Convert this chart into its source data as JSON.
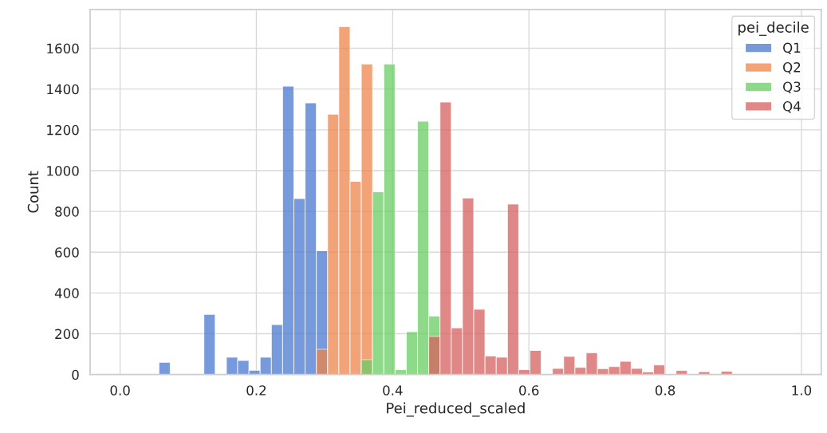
{
  "chart_data": {
    "type": "histogram",
    "xlabel": "Pei_reduced_scaled",
    "ylabel": "Count",
    "legend_title": "pei_decile",
    "bins": [
      0.057,
      0.0735,
      0.09,
      0.1065,
      0.123,
      0.1395,
      0.156,
      0.1725,
      0.189,
      0.2055,
      0.222,
      0.2385,
      0.255,
      0.2715,
      0.288,
      0.3045,
      0.321,
      0.3375,
      0.354,
      0.3705,
      0.387,
      0.4035,
      0.42,
      0.4365,
      0.453,
      0.4695,
      0.486,
      0.5025,
      0.519,
      0.5355,
      0.552,
      0.5685,
      0.585,
      0.6015,
      0.618,
      0.6345,
      0.651,
      0.6675,
      0.684,
      0.7005,
      0.717,
      0.7335,
      0.75,
      0.7665,
      0.783,
      0.7995,
      0.816,
      0.8325,
      0.849,
      0.8655,
      0.882,
      0.8985
    ],
    "series": [
      {
        "name": "Q1",
        "color": "#4878d0",
        "values": [
          60,
          null,
          null,
          null,
          295,
          null,
          85,
          69,
          21,
          85,
          245,
          1414,
          863,
          1332,
          607,
          null,
          null,
          null,
          null,
          null,
          null,
          null,
          null,
          null,
          null,
          null,
          null,
          null,
          null,
          null,
          null,
          null,
          null,
          null,
          null,
          null,
          null,
          null,
          null,
          null,
          null,
          null,
          null,
          null,
          null,
          null,
          null,
          null,
          null,
          null,
          null
        ]
      },
      {
        "name": "Q2",
        "color": "#ee854a",
        "values": [
          null,
          null,
          null,
          null,
          null,
          null,
          null,
          null,
          null,
          null,
          null,
          null,
          null,
          null,
          124,
          1277,
          1706,
          947,
          1523,
          null,
          null,
          null,
          null,
          null,
          null,
          null,
          null,
          null,
          null,
          null,
          null,
          null,
          null,
          null,
          null,
          null,
          null,
          null,
          null,
          null,
          null,
          null,
          null,
          null,
          null,
          null,
          null,
          null,
          null,
          null,
          null
        ]
      },
      {
        "name": "Q3",
        "color": "#6acc64",
        "values": [
          null,
          null,
          null,
          null,
          null,
          null,
          null,
          null,
          null,
          null,
          null,
          null,
          null,
          null,
          null,
          null,
          null,
          null,
          73,
          896,
          1523,
          24,
          210,
          1242,
          287,
          null,
          null,
          null,
          null,
          null,
          null,
          null,
          null,
          null,
          null,
          null,
          null,
          null,
          null,
          null,
          null,
          null,
          null,
          null,
          null,
          null,
          null,
          null,
          null,
          null,
          null
        ]
      },
      {
        "name": "Q4",
        "color": "#d65f5f",
        "values": [
          null,
          null,
          null,
          null,
          null,
          null,
          null,
          null,
          null,
          null,
          null,
          null,
          null,
          null,
          null,
          null,
          null,
          null,
          null,
          null,
          null,
          null,
          null,
          null,
          187,
          1336,
          229,
          866,
          320,
          91,
          85,
          836,
          24,
          118,
          null,
          30,
          89,
          35,
          107,
          29,
          39,
          65,
          30,
          13,
          47,
          null,
          20,
          null,
          14,
          null,
          16
        ]
      }
    ],
    "xlim": [
      -0.044,
      1.029
    ],
    "xticks": [
      {
        "value": 0,
        "label": "0.0"
      },
      {
        "value": 0.2,
        "label": "0.2"
      },
      {
        "value": 0.4,
        "label": "0.4"
      },
      {
        "value": 0.6,
        "label": "0.6"
      },
      {
        "value": 0.8,
        "label": "0.8"
      },
      {
        "value": 1.0,
        "label": "1.0"
      }
    ],
    "ylim": [
      0,
      1790
    ],
    "yticks": [
      0,
      200,
      400,
      600,
      800,
      1000,
      1200,
      1400,
      1600
    ],
    "grid": true,
    "legend": "top right"
  }
}
